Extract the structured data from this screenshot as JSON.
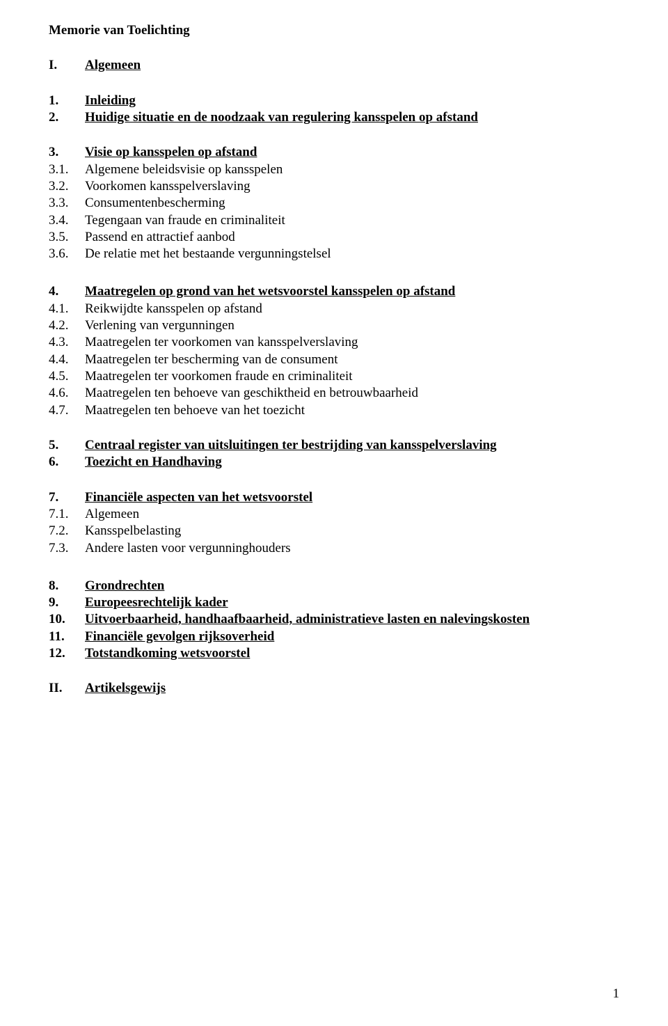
{
  "title": "Memorie van Toelichting",
  "sections": [
    {
      "gap_after": true,
      "rows": [
        {
          "num": "I.",
          "text": "Algemeen",
          "bold": true,
          "underline": true
        }
      ]
    },
    {
      "gap_after": true,
      "rows": [
        {
          "num": "1.",
          "text": "Inleiding",
          "bold": true,
          "underline": true
        },
        {
          "num": "2.",
          "text": "Huidige situatie en de noodzaak van regulering kansspelen op afstand",
          "bold": true,
          "underline": true
        }
      ]
    },
    {
      "gap_after": true,
      "big_gap": true,
      "rows": [
        {
          "num": "3.",
          "text": "Visie op kansspelen op afstand",
          "bold": true,
          "underline": true
        },
        {
          "num": "3.1.",
          "text": "Algemene beleidsvisie op kansspelen"
        },
        {
          "num": "3.2.",
          "text": "Voorkomen kansspelverslaving"
        },
        {
          "num": "3.3.",
          "text": "Consumentenbescherming"
        },
        {
          "num": "3.4.",
          "text": "Tegengaan van fraude en criminaliteit"
        },
        {
          "num": "3.5.",
          "text": "Passend en attractief aanbod"
        },
        {
          "num": "3.6.",
          "text": "De relatie met het bestaande vergunningstelsel"
        }
      ]
    },
    {
      "gap_after": true,
      "rows": [
        {
          "num": "4.",
          "text": "Maatregelen op grond van het wetsvoorstel kansspelen op afstand",
          "bold": true,
          "underline": true
        },
        {
          "num": "4.1.",
          "text": "Reikwijdte kansspelen op afstand"
        },
        {
          "num": "4.2.",
          "text": "Verlening van vergunningen"
        },
        {
          "num": "4.3.",
          "text": "Maatregelen ter voorkomen van kansspelverslaving"
        },
        {
          "num": "4.4.",
          "text": "Maatregelen ter bescherming van de consument"
        },
        {
          "num": "4.5.",
          "text": "Maatregelen ter voorkomen fraude en criminaliteit"
        },
        {
          "num": "4.6.",
          "text": "Maatregelen ten behoeve van geschiktheid en betrouwbaarheid"
        },
        {
          "num": "4.7.",
          "text": "Maatregelen ten behoeve van het toezicht"
        }
      ]
    },
    {
      "gap_after": true,
      "rows": [
        {
          "num": "5.",
          "text": "Centraal register van uitsluitingen ter bestrijding van kansspelverslaving",
          "bold": true,
          "underline": true
        },
        {
          "num": "6.",
          "text": "Toezicht en Handhaving",
          "bold": true,
          "underline": true
        }
      ]
    },
    {
      "gap_after": true,
      "big_gap": true,
      "rows": [
        {
          "num": "7.",
          "text": "Financiële aspecten van het wetsvoorstel",
          "bold": true,
          "underline": true
        },
        {
          "num": "7.1.",
          "text": "Algemeen"
        },
        {
          "num": "7.2.",
          "text": "Kansspelbelasting"
        },
        {
          "num": "7.3.",
          "text": "Andere lasten voor vergunninghouders"
        }
      ]
    },
    {
      "gap_after": true,
      "rows": [
        {
          "num": "8.",
          "text": "Grondrechten",
          "bold": true,
          "underline": true
        },
        {
          "num": "9.",
          "text": "Europeesrechtelijk kader",
          "bold": true,
          "underline": true
        },
        {
          "num": "10.",
          "text": "Uitvoerbaarheid, handhaafbaarheid, administratieve lasten en nalevingskosten",
          "bold": true,
          "underline": true
        },
        {
          "num": "11.",
          "text": "Financiële gevolgen rijksoverheid",
          "bold": true,
          "underline": true
        },
        {
          "num": "12.",
          "text": "Totstandkoming wetsvoorstel",
          "bold": true,
          "underline": true
        }
      ]
    },
    {
      "gap_after": false,
      "rows": [
        {
          "num": "II.",
          "text": "Artikelsgewijs",
          "bold": true,
          "underline": true
        }
      ]
    }
  ],
  "page_number": "1"
}
